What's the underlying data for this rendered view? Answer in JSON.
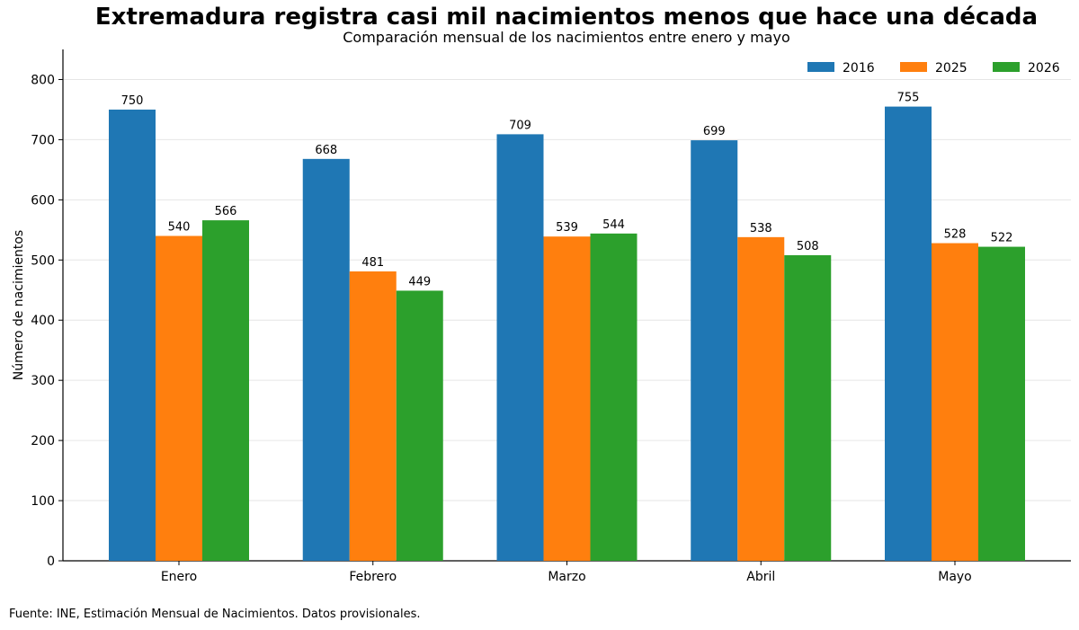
{
  "title": "Extremadura registra casi mil nacimientos menos que hace una década",
  "subtitle": "Comparación mensual de los nacimientos entre enero y mayo",
  "source": "Fuente: INE, Estimación Mensual de Nacimientos. Datos provisionales.",
  "chart_data": {
    "type": "bar",
    "title": "Extremadura registra casi mil nacimientos menos que hace una década",
    "subtitle": "Comparación mensual de los nacimientos entre enero y mayo",
    "xlabel": "",
    "ylabel": "Número de nacimientos",
    "ylim": [
      0,
      850
    ],
    "yticks": [
      0,
      100,
      200,
      300,
      400,
      500,
      600,
      700,
      800
    ],
    "grid": "horizontal",
    "legend": "top-right",
    "categories": [
      "Enero",
      "Febrero",
      "Marzo",
      "Abril",
      "Mayo"
    ],
    "series": [
      {
        "name": "2016",
        "color": "#1f77b4",
        "values": [
          750,
          668,
          709,
          699,
          755
        ]
      },
      {
        "name": "2025",
        "color": "#ff7f0e",
        "values": [
          540,
          481,
          539,
          538,
          528
        ]
      },
      {
        "name": "2026",
        "color": "#2ca02c",
        "values": [
          566,
          449,
          544,
          508,
          522
        ]
      }
    ]
  }
}
